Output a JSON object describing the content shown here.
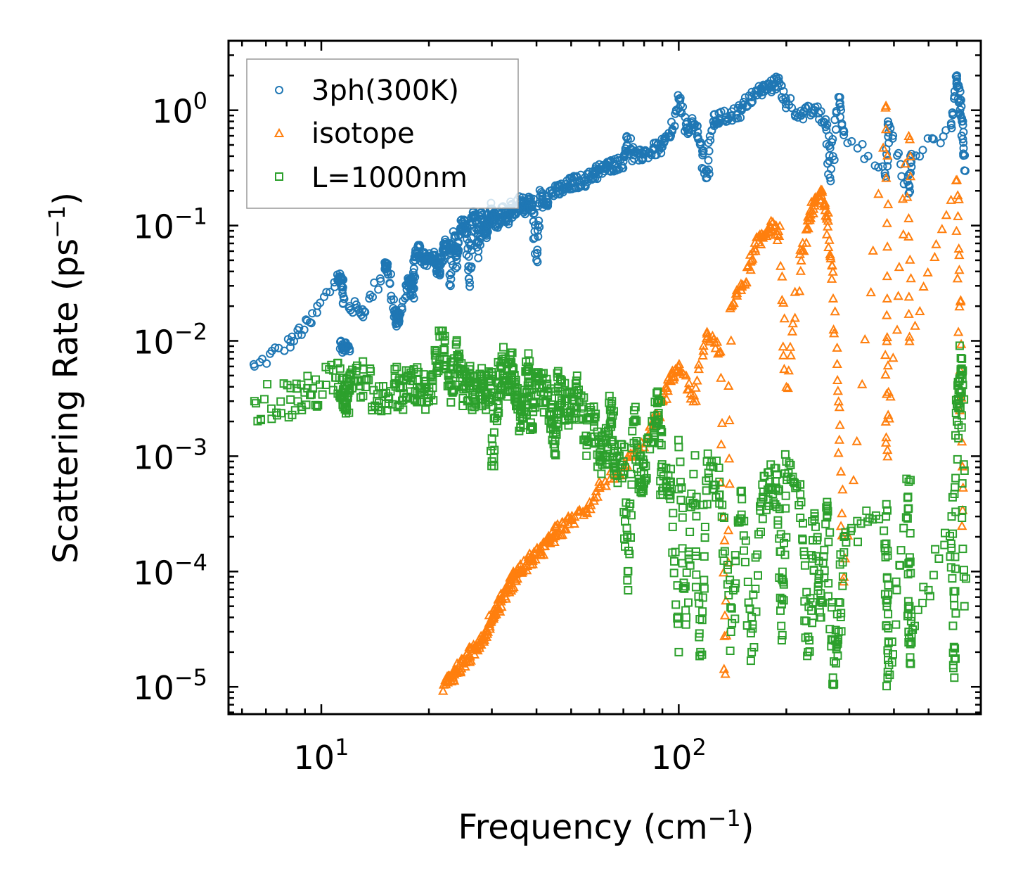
{
  "chart_data": {
    "type": "scatter",
    "title": "",
    "xlabel": "Frequency (cm",
    "xlabel_sup": "−1",
    "xlabel_end": ")",
    "ylabel": "Scattering Rate (ps",
    "ylabel_sup": "−1",
    "ylabel_end": ")",
    "xscale": "log",
    "yscale": "log",
    "xlim": [
      5.5,
      700
    ],
    "ylim": [
      5.8e-06,
      4.0
    ],
    "grid": false,
    "legend_position": "top-left",
    "xticks": [
      {
        "value": 10,
        "base": "10",
        "exp": "1"
      },
      {
        "value": 100,
        "base": "10",
        "exp": "2"
      }
    ],
    "yticks": [
      {
        "value": 1,
        "base": "10",
        "exp": "0"
      },
      {
        "value": 0.1,
        "base": "10",
        "exp": "−1"
      },
      {
        "value": 0.01,
        "base": "10",
        "exp": "−2"
      },
      {
        "value": 0.001,
        "base": "10",
        "exp": "−3"
      },
      {
        "value": 0.0001,
        "base": "10",
        "exp": "−4"
      },
      {
        "value": 1e-05,
        "base": "10",
        "exp": "−5"
      }
    ],
    "series": [
      {
        "name": "3ph(300K)",
        "marker": "circle",
        "color": "#1f77b4",
        "points": [
          [
            6.5,
            0.006
          ],
          [
            8.2,
            0.0098
          ],
          [
            9.3,
            0.0145
          ],
          [
            11.2,
            0.036
          ],
          [
            11.4,
            0.034
          ],
          [
            11.5,
            0.021
          ],
          [
            11.3,
            0.0098
          ],
          [
            11.6,
            0.0088
          ],
          [
            12.0,
            0.0085
          ],
          [
            12.0,
            0.02
          ],
          [
            13.2,
            0.018
          ],
          [
            15.1,
            0.045
          ],
          [
            15.3,
            0.044
          ],
          [
            16.0,
            0.018
          ],
          [
            16.2,
            0.015
          ],
          [
            16.5,
            0.016
          ],
          [
            17.5,
            0.032
          ],
          [
            17.8,
            0.031
          ],
          [
            18.0,
            0.025
          ],
          [
            18.3,
            0.05
          ],
          [
            18.8,
            0.066
          ],
          [
            19.3,
            0.054
          ],
          [
            19.8,
            0.05
          ],
          [
            20.5,
            0.055
          ],
          [
            21.0,
            0.045
          ],
          [
            21.5,
            0.04
          ],
          [
            22.0,
            0.058
          ],
          [
            22.5,
            0.07
          ],
          [
            23.0,
            0.062
          ],
          [
            23.0,
            0.03
          ],
          [
            23.6,
            0.082
          ],
          [
            24.0,
            0.044
          ],
          [
            24.0,
            0.055
          ],
          [
            24.5,
            0.095
          ],
          [
            25.0,
            0.1
          ],
          [
            25.5,
            0.085
          ],
          [
            26.0,
            0.032
          ],
          [
            26.5,
            0.12
          ],
          [
            27.0,
            0.11
          ],
          [
            27.5,
            0.06
          ],
          [
            28.0,
            0.13
          ],
          [
            28.5,
            0.1
          ],
          [
            29.0,
            0.088
          ],
          [
            29.5,
            0.115
          ],
          [
            30.0,
            0.14
          ],
          [
            31.0,
            0.1
          ],
          [
            32.0,
            0.13
          ],
          [
            33.0,
            0.11
          ],
          [
            34.0,
            0.15
          ],
          [
            35.0,
            0.125
          ],
          [
            36.0,
            0.16
          ],
          [
            37.0,
            0.14
          ],
          [
            38.0,
            0.17
          ],
          [
            39.0,
            0.15
          ],
          [
            40.0,
            0.05
          ],
          [
            41.0,
            0.18
          ],
          [
            42.0,
            0.16
          ],
          [
            44.0,
            0.19
          ],
          [
            46.0,
            0.2
          ],
          [
            48.0,
            0.21
          ],
          [
            50.0,
            0.23
          ],
          [
            52.0,
            0.24
          ],
          [
            55.0,
            0.25
          ],
          [
            58.0,
            0.28
          ],
          [
            60.0,
            0.3
          ],
          [
            63.0,
            0.32
          ],
          [
            66.0,
            0.34
          ],
          [
            70.0,
            0.36
          ],
          [
            72.0,
            0.56
          ],
          [
            75.0,
            0.38
          ],
          [
            80.0,
            0.42
          ],
          [
            85.0,
            0.45
          ],
          [
            90.0,
            0.48
          ],
          [
            95.0,
            0.6
          ],
          [
            100.0,
            1.25
          ],
          [
            105.0,
            0.7
          ],
          [
            110.0,
            0.75
          ],
          [
            115.0,
            0.5
          ],
          [
            120.0,
            0.26
          ],
          [
            125.0,
            0.8
          ],
          [
            130.0,
            0.85
          ],
          [
            140.0,
            0.9
          ],
          [
            150.0,
            1.0
          ],
          [
            160.0,
            1.3
          ],
          [
            170.0,
            1.5
          ],
          [
            180.0,
            1.6
          ],
          [
            190.0,
            1.8
          ],
          [
            200.0,
            1.2
          ],
          [
            220.0,
            0.9
          ],
          [
            240.0,
            1.0
          ],
          [
            260.0,
            0.75
          ],
          [
            265.0,
            0.26
          ],
          [
            280.0,
            1.3
          ],
          [
            290.0,
            0.65
          ],
          [
            380.0,
            0.26
          ],
          [
            385.0,
            0.8
          ],
          [
            440.0,
            0.19
          ],
          [
            445.0,
            0.4
          ],
          [
            580.0,
            0.7
          ],
          [
            600.0,
            2.0
          ],
          [
            610.0,
            1.2
          ],
          [
            620.0,
            0.8
          ],
          [
            630.0,
            0.3
          ]
        ]
      },
      {
        "name": "isotope",
        "marker": "triangle",
        "color": "#ff7f0e",
        "points": [
          [
            22.0,
            1.05e-05
          ],
          [
            23.0,
            1.2e-05
          ],
          [
            24.0,
            1.4e-05
          ],
          [
            25.0,
            1.6e-05
          ],
          [
            26.0,
            1.9e-05
          ],
          [
            27.0,
            2.2e-05
          ],
          [
            28.0,
            2.6e-05
          ],
          [
            29.0,
            3.1e-05
          ],
          [
            30.0,
            4e-05
          ],
          [
            31.0,
            4.8e-05
          ],
          [
            32.0,
            5.8e-05
          ],
          [
            33.0,
            7e-05
          ],
          [
            34.0,
            8e-05
          ],
          [
            35.0,
            9.5e-05
          ],
          [
            37.0,
            0.00011
          ],
          [
            39.0,
            0.00013
          ],
          [
            41.0,
            0.00015
          ],
          [
            43.0,
            0.00018
          ],
          [
            45.0,
            0.00021
          ],
          [
            47.0,
            0.00024
          ],
          [
            50.0,
            0.00028
          ],
          [
            55.0,
            0.00035
          ],
          [
            60.0,
            0.00055
          ],
          [
            70.0,
            0.0008
          ],
          [
            80.0,
            0.0012
          ],
          [
            90.0,
            0.003
          ],
          [
            95.0,
            0.0045
          ],
          [
            100.0,
            0.006
          ],
          [
            110.0,
            0.003
          ],
          [
            120.0,
            0.012
          ],
          [
            130.0,
            0.008
          ],
          [
            135.0,
            1.3e-05
          ],
          [
            140.0,
            0.02
          ],
          [
            150.0,
            0.03
          ],
          [
            160.0,
            0.05
          ],
          [
            170.0,
            0.08
          ],
          [
            180.0,
            0.1
          ],
          [
            190.0,
            0.09
          ],
          [
            200.0,
            0.004
          ],
          [
            220.0,
            0.05
          ],
          [
            230.0,
            0.12
          ],
          [
            240.0,
            0.15
          ],
          [
            250.0,
            0.2
          ],
          [
            260.0,
            0.12
          ],
          [
            270.0,
            0.04
          ],
          [
            280.0,
            0.003
          ],
          [
            290.0,
            9e-05
          ],
          [
            380.0,
            1.1
          ],
          [
            382.0,
            0.01
          ],
          [
            384.0,
            0.001
          ],
          [
            440.0,
            0.6
          ],
          [
            442.0,
            0.01
          ],
          [
            600.0,
            0.25
          ],
          [
            610.0,
            0.02
          ],
          [
            620.0,
            0.00025
          ]
        ]
      },
      {
        "name": "L=1000nm",
        "marker": "square",
        "color": "#2ca02c",
        "points": [
          [
            6.5,
            0.003
          ],
          [
            8.2,
            0.0031
          ],
          [
            9.3,
            0.0034
          ],
          [
            11.0,
            0.0048
          ],
          [
            11.5,
            0.0038
          ],
          [
            11.8,
            0.0032
          ],
          [
            12.0,
            0.005
          ],
          [
            13.2,
            0.0046
          ],
          [
            14.5,
            0.0029
          ],
          [
            16.0,
            0.0042
          ],
          [
            17.0,
            0.0035
          ],
          [
            18.0,
            0.0045
          ],
          [
            19.0,
            0.0038
          ],
          [
            20.0,
            0.003
          ],
          [
            21.0,
            0.0078
          ],
          [
            22.0,
            0.0085
          ],
          [
            23.0,
            0.0042
          ],
          [
            24.0,
            0.0075
          ],
          [
            25.0,
            0.0038
          ],
          [
            26.0,
            0.0045
          ],
          [
            27.0,
            0.003
          ],
          [
            28.0,
            0.0042
          ],
          [
            29.0,
            0.0035
          ],
          [
            30.0,
            0.005
          ],
          [
            30.0,
            0.0009
          ],
          [
            31.0,
            0.0033
          ],
          [
            32.0,
            0.006
          ],
          [
            33.0,
            0.0045
          ],
          [
            34.0,
            0.0065
          ],
          [
            35.0,
            0.0042
          ],
          [
            36.0,
            0.0022
          ],
          [
            37.0,
            0.003
          ],
          [
            38.0,
            0.0055
          ],
          [
            39.0,
            0.0018
          ],
          [
            40.0,
            0.0048
          ],
          [
            42.0,
            0.0035
          ],
          [
            44.0,
            0.0028
          ],
          [
            45.0,
            0.0012
          ],
          [
            46.0,
            0.004
          ],
          [
            48.0,
            0.003
          ],
          [
            50.0,
            0.0025
          ],
          [
            52.0,
            0.0035
          ],
          [
            55.0,
            0.0015
          ],
          [
            58.0,
            0.002
          ],
          [
            60.0,
            0.001
          ],
          [
            63.0,
            0.0012
          ],
          [
            65.0,
            0.003
          ],
          [
            66.0,
            0.0008
          ],
          [
            70.0,
            0.0009
          ],
          [
            72.0,
            0.0001
          ],
          [
            75.0,
            0.0025
          ],
          [
            78.0,
            0.0006
          ],
          [
            80.0,
            0.0007
          ],
          [
            85.0,
            0.0018
          ],
          [
            88.0,
            0.003
          ],
          [
            90.0,
            0.0005
          ],
          [
            95.0,
            0.0006
          ],
          [
            100.0,
            2e-05
          ],
          [
            100.0,
            0.0012
          ],
          [
            105.0,
            4e-05
          ],
          [
            110.0,
            0.0007
          ],
          [
            115.0,
            2e-05
          ],
          [
            120.0,
            0.0009
          ],
          [
            130.0,
            0.0006
          ],
          [
            140.0,
            3e-05
          ],
          [
            150.0,
            0.0005
          ],
          [
            160.0,
            2e-05
          ],
          [
            170.0,
            0.0004
          ],
          [
            180.0,
            0.0006
          ],
          [
            190.0,
            0.0005
          ],
          [
            195.0,
            2.8e-05
          ],
          [
            200.0,
            0.0009
          ],
          [
            220.0,
            0.0004
          ],
          [
            230.0,
            2e-05
          ],
          [
            240.0,
            0.0003
          ],
          [
            250.0,
            4e-05
          ],
          [
            260.0,
            0.0004
          ],
          [
            270.0,
            1.2e-05
          ],
          [
            280.0,
            3e-05
          ],
          [
            290.0,
            0.0002
          ],
          [
            380.0,
            0.0003
          ],
          [
            382.0,
            5e-05
          ],
          [
            384.0,
            1.2e-05
          ],
          [
            440.0,
            0.0006
          ],
          [
            442.0,
            5e-05
          ],
          [
            444.0,
            1.8e-05
          ],
          [
            580.0,
            0.0003
          ],
          [
            590.0,
            1.2e-05
          ],
          [
            600.0,
            0.002
          ],
          [
            610.0,
            0.0045
          ],
          [
            620.0,
            0.007
          ],
          [
            630.0,
            5e-05
          ]
        ]
      }
    ]
  }
}
